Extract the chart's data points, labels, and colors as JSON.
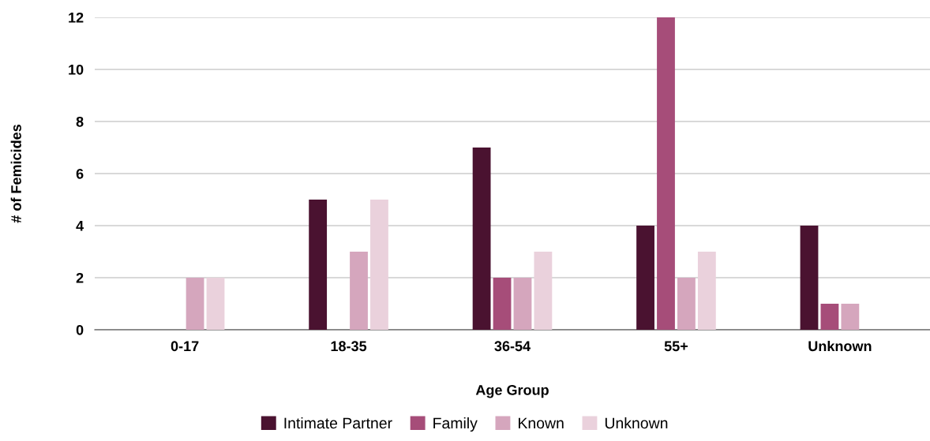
{
  "chart_data": {
    "type": "bar",
    "xlabel": "Age Group",
    "ylabel": "# of Femicides",
    "categories": [
      "0-17",
      "18-35",
      "36-54",
      "55+",
      "Unknown"
    ],
    "series": [
      {
        "name": "Intimate Partner",
        "color": "#4a1230",
        "values": [
          0,
          5,
          7,
          4,
          4
        ]
      },
      {
        "name": "Family",
        "color": "#a64d79",
        "values": [
          0,
          0,
          2,
          12,
          1
        ]
      },
      {
        "name": "Known",
        "color": "#d5a6bd",
        "values": [
          2,
          3,
          2,
          2,
          1
        ]
      },
      {
        "name": "Unknown",
        "color": "#ead1dc",
        "values": [
          2,
          5,
          3,
          3,
          0
        ]
      }
    ],
    "ylim": [
      0,
      12
    ],
    "yticks": [
      0,
      2,
      4,
      6,
      8,
      10,
      12
    ],
    "grid": "y",
    "legend": "bottom"
  }
}
